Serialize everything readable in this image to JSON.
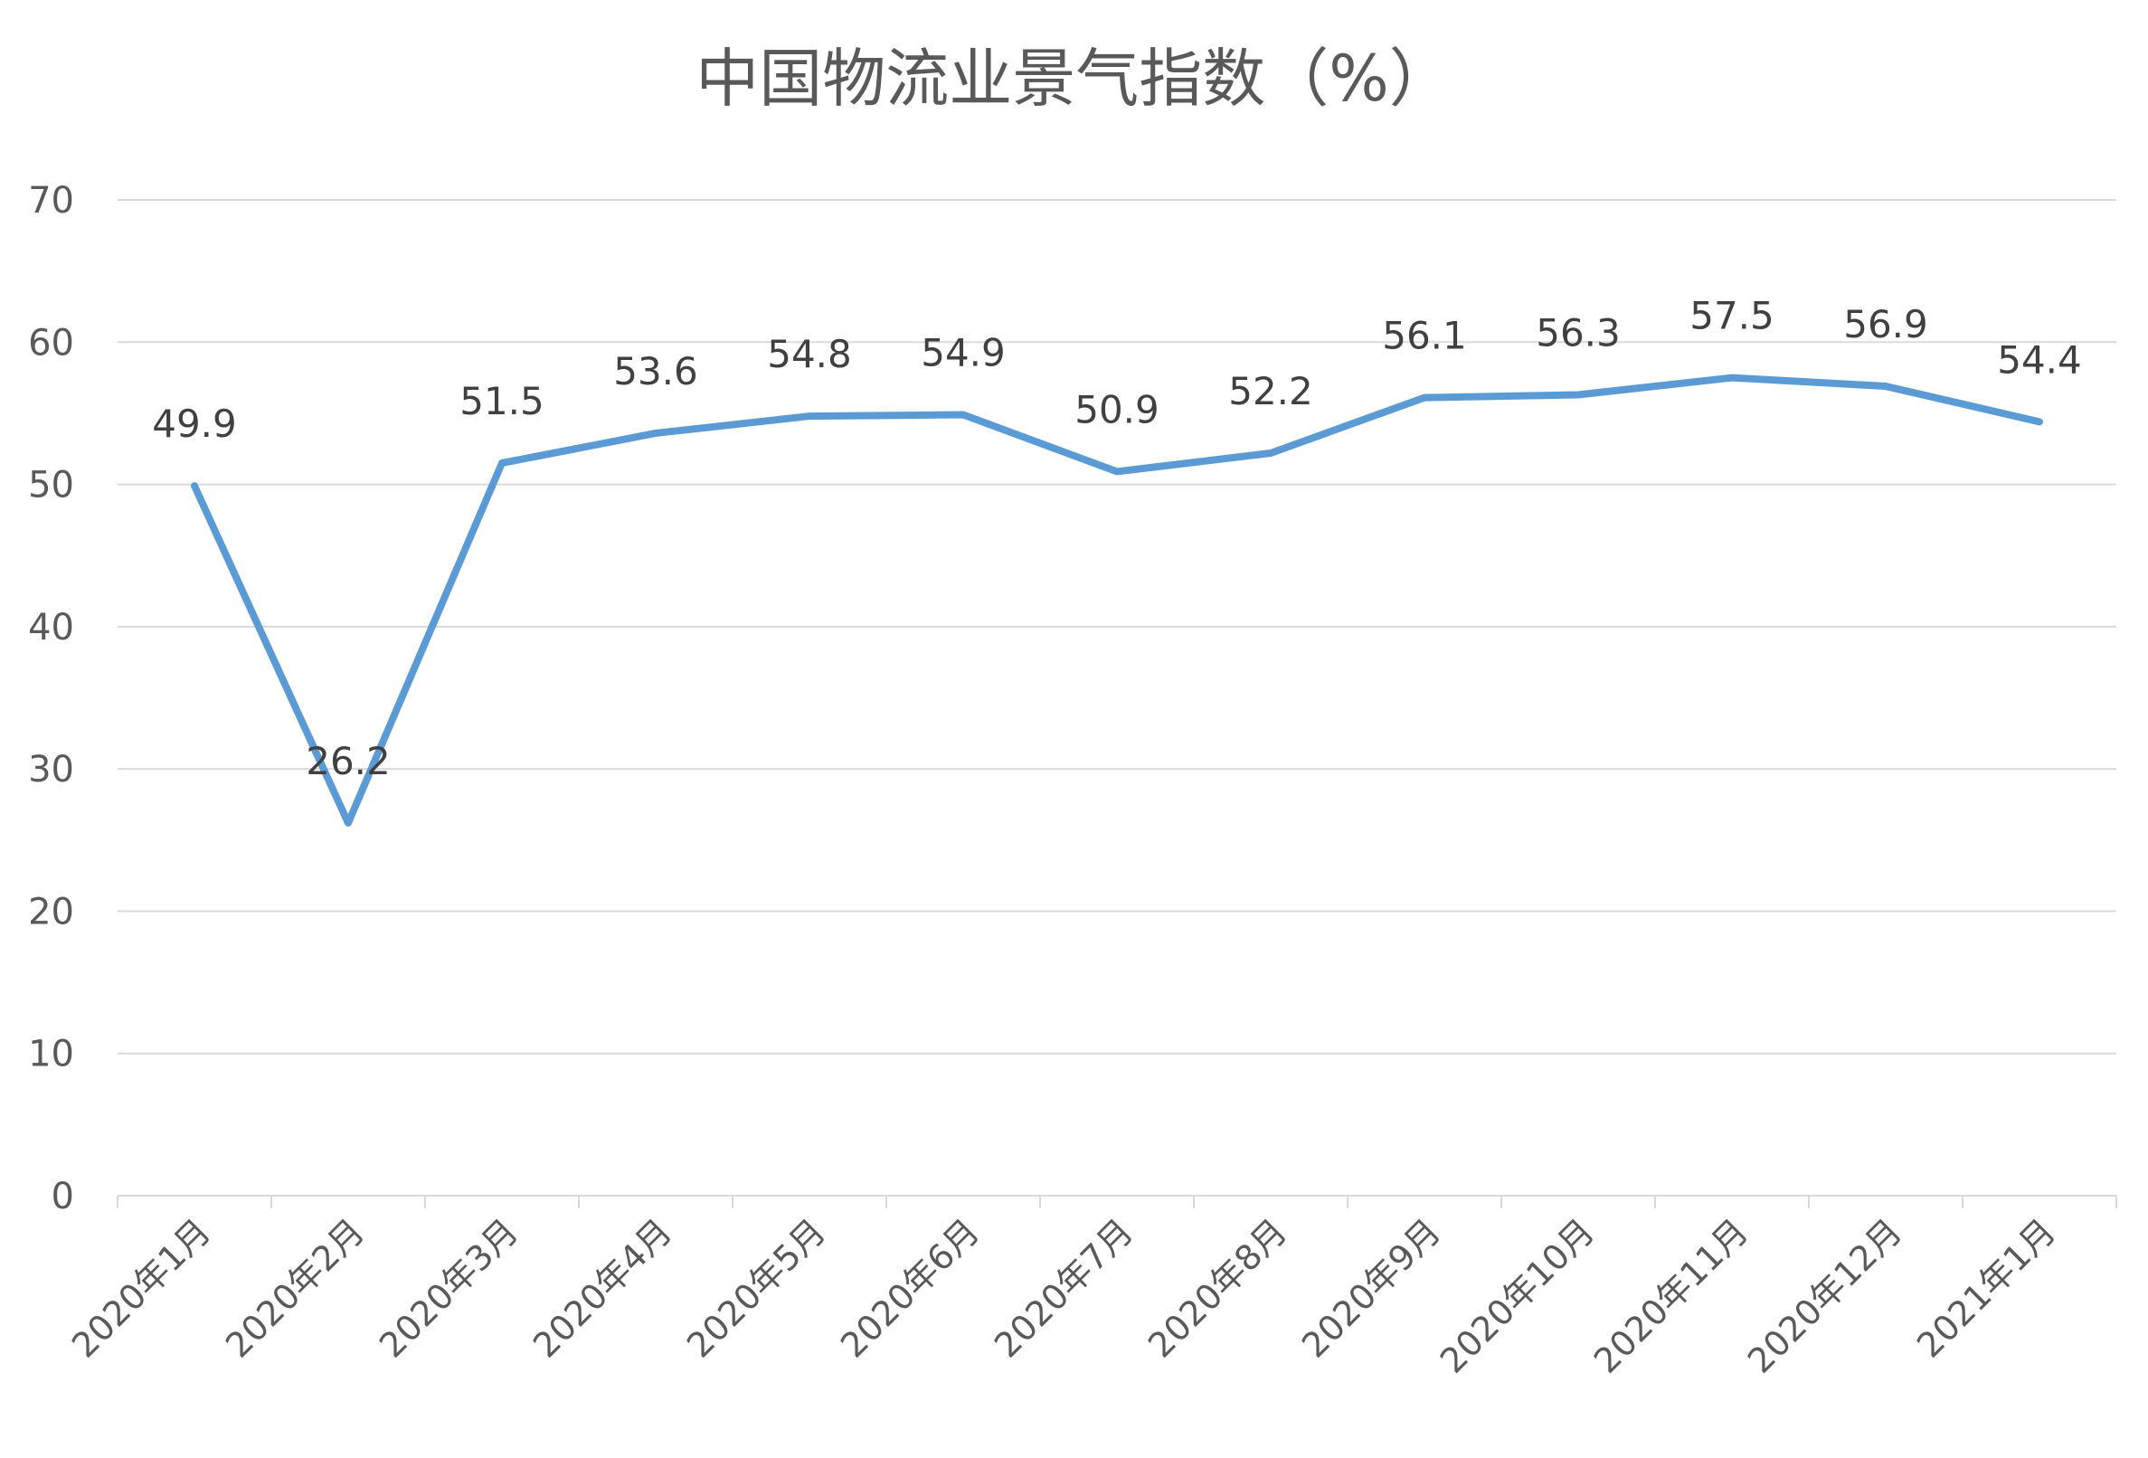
{
  "chart_data": {
    "type": "line",
    "title": "中国物流业景气指数（%）",
    "xlabel": "",
    "ylabel": "",
    "categories": [
      "2020年1月",
      "2020年2月",
      "2020年3月",
      "2020年4月",
      "2020年5月",
      "2020年6月",
      "2020年7月",
      "2020年8月",
      "2020年9月",
      "2020年10月",
      "2020年11月",
      "2020年12月",
      "2021年1月"
    ],
    "series": [
      {
        "values": [
          49.9,
          26.2,
          51.5,
          53.6,
          54.8,
          54.9,
          50.9,
          52.2,
          56.1,
          56.3,
          57.5,
          56.9,
          54.4
        ],
        "color": "#5B9BD5"
      }
    ],
    "data_labels": [
      "49.9",
      "26.2",
      "51.5",
      "53.6",
      "54.8",
      "54.9",
      "50.9",
      "52.2",
      "56.1",
      "56.3",
      "57.5",
      "56.9",
      "54.4"
    ],
    "ylim": [
      0,
      70
    ],
    "yticks": [
      "0",
      "10",
      "20",
      "30",
      "40",
      "50",
      "60",
      "70"
    ],
    "grid": true,
    "legend": "none"
  }
}
